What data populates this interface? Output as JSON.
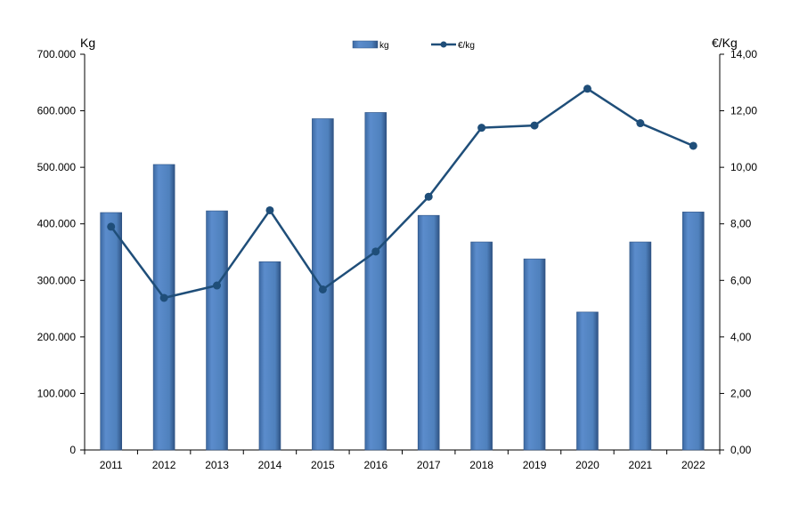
{
  "chart_data": {
    "type": "bar",
    "categories": [
      "2011",
      "2012",
      "2013",
      "2014",
      "2015",
      "2016",
      "2017",
      "2018",
      "2019",
      "2020",
      "2021",
      "2022"
    ],
    "series": [
      {
        "name": "kg",
        "type": "bar",
        "axis": "left",
        "color": "#4F81BD",
        "values": [
          420000,
          505000,
          423000,
          333000,
          586000,
          597000,
          415000,
          368000,
          338000,
          244000,
          368000,
          421000
        ]
      },
      {
        "name": "€/kg",
        "type": "line",
        "axis": "right",
        "color": "#1F4E79",
        "values": [
          7.9,
          5.38,
          5.82,
          8.48,
          5.68,
          7.02,
          8.96,
          11.4,
          11.48,
          12.78,
          11.56,
          10.76
        ]
      }
    ],
    "ylabel": "Kg",
    "y2label": "€/Kg",
    "ylim": [
      0,
      700000
    ],
    "y2lim": [
      0,
      14
    ],
    "yticks": [
      "0",
      "100.000",
      "200.000",
      "300.000",
      "400.000",
      "500.000",
      "600.000",
      "700.000"
    ],
    "y2ticks": [
      "0,00",
      "2,00",
      "4,00",
      "6,00",
      "8,00",
      "10,00",
      "12,00",
      "14,00"
    ],
    "legend": {
      "position": "top-center",
      "entries": [
        "kg",
        "€/kg"
      ]
    },
    "grid": false
  }
}
